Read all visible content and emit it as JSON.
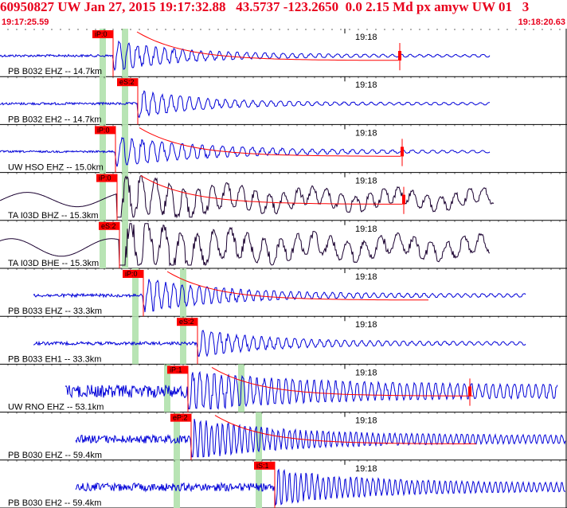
{
  "header": {
    "title": "60950827 UW Jan 27, 2015 19:17:32.88   43.5737 -123.2650  0.0 2.15 Md px amyw UW 01   3",
    "time_start": "19:17:25.59",
    "time_end": "19:18:20.63"
  },
  "colors": {
    "header": "#e8001c",
    "trace_blue": "#0000d8",
    "trace_dark": "#1a0030",
    "pick": "#ff0000",
    "window": "#b8e4b4"
  },
  "time_tick_label": "19:18",
  "traces": [
    {
      "label": "PB B032 EHZ -- 14.7km",
      "pick": "iP:0",
      "color": "blue"
    },
    {
      "label": "PB B032 EH2 -- 14.7km",
      "pick": "eS:2",
      "color": "blue"
    },
    {
      "label": "UW HSO EHZ -- 15.0km",
      "pick": "iP:0",
      "color": "blue"
    },
    {
      "label": "TA I03D BHZ -- 15.3km",
      "pick": "iP:0",
      "color": "dark"
    },
    {
      "label": "TA I03D BHE -- 15.3km",
      "pick": "eS:2",
      "color": "dark"
    },
    {
      "label": "PB B033 EHZ -- 33.3km",
      "pick": "iP:0",
      "color": "blue"
    },
    {
      "label": "PB B033 EH1 -- 33.3km",
      "pick": "eS:2",
      "color": "blue"
    },
    {
      "label": "UW RNO EHZ -- 53.1km",
      "pick": "iP:1",
      "color": "blue"
    },
    {
      "label": "PB B030 EHZ -- 59.4km",
      "pick": "eP:2",
      "color": "blue"
    },
    {
      "label": "PB B030 EH2 -- 59.4km",
      "pick": "iS:1",
      "color": "blue"
    }
  ]
}
